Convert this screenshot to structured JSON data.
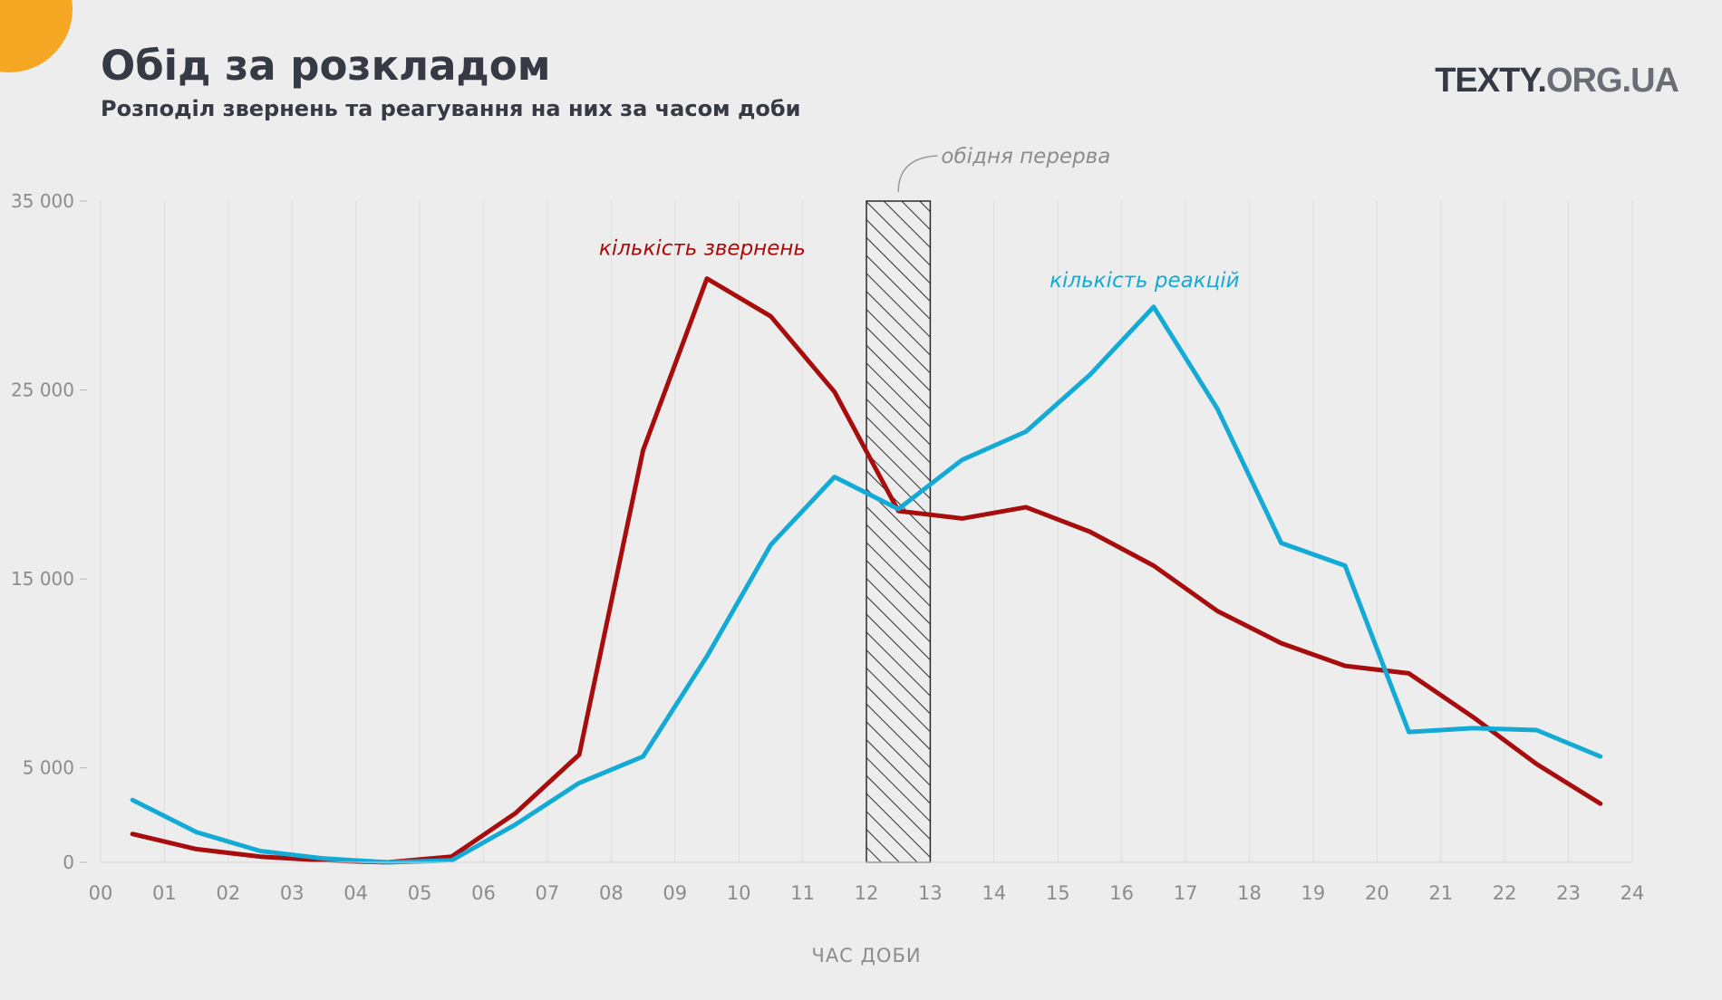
{
  "header": {
    "title": "Обід за розкладом",
    "subtitle": "Розподіл звернень та реагування на них за часом доби",
    "brand_main": "TEXTY.",
    "brand_suffix": "ORG.UA"
  },
  "colors": {
    "background": "#ededed",
    "accent": "#f5a623",
    "requests": "#a80d0d",
    "reactions": "#14aad6",
    "text_dark": "#363a45",
    "text_muted": "#8c8c8c"
  },
  "chart_data": {
    "type": "line",
    "title": "Обід за розкладом",
    "subtitle": "Розподіл звернень та реагування на них за часом доби",
    "xlabel": "ЧАС ДОБИ",
    "ylabel": "",
    "xlim": [
      0,
      24
    ],
    "ylim": [
      0,
      35000
    ],
    "x_ticks": [
      "00",
      "01",
      "02",
      "03",
      "04",
      "05",
      "06",
      "07",
      "08",
      "09",
      "10",
      "11",
      "12",
      "13",
      "14",
      "15",
      "16",
      "17",
      "18",
      "19",
      "20",
      "21",
      "22",
      "23",
      "24"
    ],
    "y_ticks": [
      {
        "value": 0,
        "label": "0"
      },
      {
        "value": 5000,
        "label": "5 000"
      },
      {
        "value": 15000,
        "label": "15 000"
      },
      {
        "value": 25000,
        "label": "25 000"
      },
      {
        "value": 35000,
        "label": "35 000"
      }
    ],
    "grid": "vertical",
    "legend": "inline labels",
    "x": [
      0.5,
      1.5,
      2.5,
      3.5,
      4.5,
      5.5,
      6.5,
      7.5,
      8.5,
      9.5,
      10.5,
      11.5,
      12.5,
      13.5,
      14.5,
      15.5,
      16.5,
      17.5,
      18.5,
      19.5,
      20.5,
      21.5,
      22.5,
      23.5
    ],
    "series": [
      {
        "name": "кількість звернень",
        "color": "#a80d0d",
        "values": [
          1500,
          700,
          300,
          100,
          0,
          300,
          2600,
          5700,
          21800,
          30900,
          28900,
          24900,
          18600,
          18200,
          18800,
          17500,
          15700,
          13300,
          11600,
          10400,
          10000,
          7700,
          5200,
          3100
        ]
      },
      {
        "name": "кількість реакцій",
        "color": "#14aad6",
        "values": [
          3300,
          1600,
          600,
          200,
          0,
          100,
          2000,
          4200,
          5600,
          10900,
          16800,
          20400,
          18700,
          21300,
          22800,
          25800,
          29400,
          24000,
          16900,
          15700,
          6900,
          7100,
          7000,
          5600
        ]
      }
    ],
    "annotations": [
      {
        "text": "обідня перерва",
        "x_start": 12,
        "x_end": 13
      }
    ]
  }
}
